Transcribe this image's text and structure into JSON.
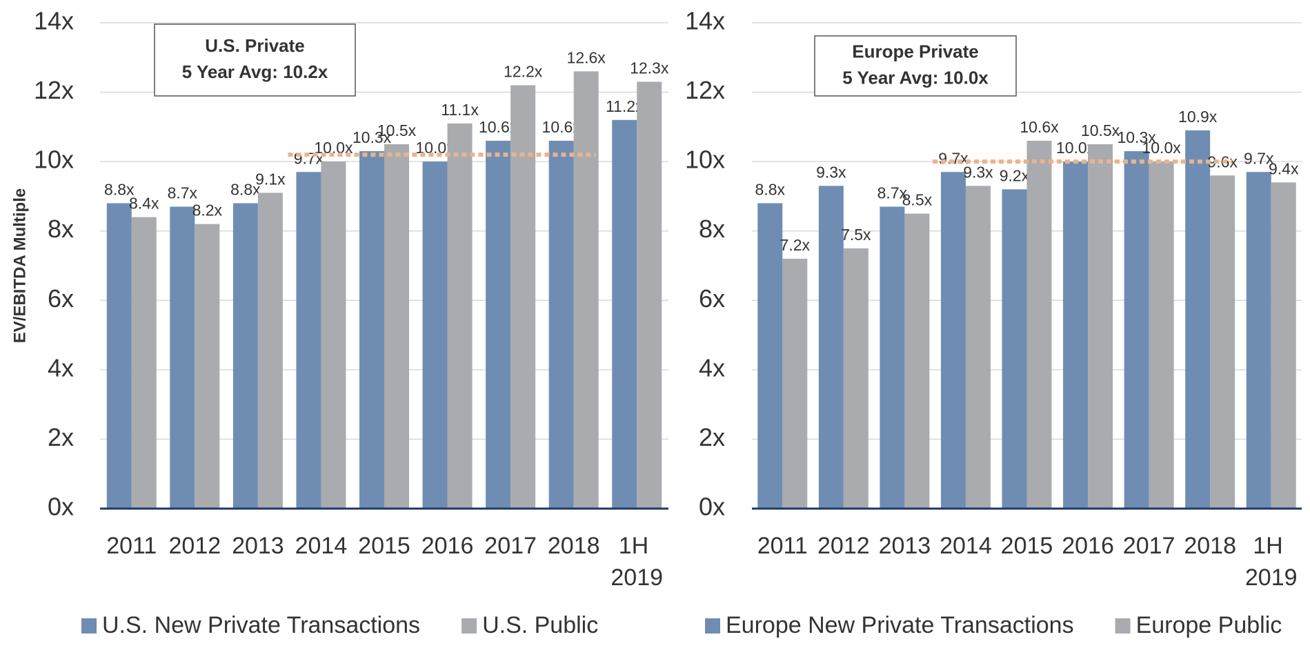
{
  "chart_data": [
    {
      "type": "bar",
      "ylabel": "EV/EBITDA Multiple",
      "annotation": [
        "U.S. Private",
        "5 Year Avg: 10.2x"
      ],
      "average": 10.2,
      "average_from": "2014",
      "average_to": "2018",
      "average_color": "#e9b48e",
      "categories": [
        "2011",
        "2012",
        "2013",
        "2014",
        "2015",
        "2016",
        "2017",
        "2018",
        "1H 2019"
      ],
      "series": [
        {
          "name": "U.S. New Private Transactions",
          "color": "#6f8db3",
          "values": [
            8.8,
            8.7,
            8.8,
            9.7,
            10.3,
            10.0,
            10.6,
            10.6,
            11.2
          ],
          "value_labels": [
            "8.8x",
            "8.7x",
            "8.8x",
            "9.7x",
            "10.3x",
            "10.0x",
            "10.6x",
            "10.6x",
            "11.2x"
          ]
        },
        {
          "name": "U.S. Public",
          "color": "#a9abae",
          "values": [
            8.4,
            8.2,
            9.1,
            10.0,
            10.5,
            11.1,
            12.2,
            12.6,
            12.3
          ],
          "value_labels": [
            "8.4x",
            "8.2x",
            "9.1x",
            "10.0x",
            "10.5x",
            "11.1x",
            "12.2x",
            "12.6x",
            "12.3x"
          ]
        }
      ],
      "ylim": [
        0,
        14
      ],
      "yticks": [
        {
          "value": 0,
          "label": "0x"
        },
        {
          "value": 2,
          "label": "2x"
        },
        {
          "value": 4,
          "label": "4x"
        },
        {
          "value": 6,
          "label": "6x"
        },
        {
          "value": 8,
          "label": "8x"
        },
        {
          "value": 10,
          "label": "10x"
        },
        {
          "value": 12,
          "label": "12x"
        },
        {
          "value": 14,
          "label": "14x"
        }
      ],
      "grid": true,
      "legend": "bottom"
    },
    {
      "type": "bar",
      "annotation": [
        "Europe Private",
        "5 Year Avg: 10.0x"
      ],
      "average": 10.0,
      "average_from": "2014",
      "average_to": "2018",
      "average_color": "#e9b48e",
      "categories": [
        "2011",
        "2012",
        "2013",
        "2014",
        "2015",
        "2016",
        "2017",
        "2018",
        "1H 2019"
      ],
      "series": [
        {
          "name": "Europe New Private Transactions",
          "color": "#6f8db3",
          "values": [
            8.8,
            9.3,
            8.7,
            9.7,
            9.2,
            10.0,
            10.3,
            10.9,
            9.7
          ],
          "value_labels": [
            "8.8x",
            "9.3x",
            "8.7x",
            "9.7x",
            "9.2x",
            "10.0x",
            "10.3x",
            "10.9x",
            "9.7x"
          ]
        },
        {
          "name": "Europe Public",
          "color": "#a9abae",
          "values": [
            7.2,
            7.5,
            8.5,
            9.3,
            10.6,
            10.5,
            10.0,
            9.6,
            9.4
          ],
          "value_labels": [
            "7.2x",
            "7.5x",
            "8.5x",
            "9.3x",
            "10.6x",
            "10.5x",
            "10.0x",
            "9.6x",
            "9.4x"
          ]
        }
      ],
      "ylim": [
        0,
        14
      ],
      "yticks": [
        {
          "value": 0,
          "label": "0x"
        },
        {
          "value": 2,
          "label": "2x"
        },
        {
          "value": 4,
          "label": "4x"
        },
        {
          "value": 6,
          "label": "6x"
        },
        {
          "value": 8,
          "label": "8x"
        },
        {
          "value": 10,
          "label": "10x"
        },
        {
          "value": 12,
          "label": "12x"
        },
        {
          "value": 14,
          "label": "14x"
        }
      ],
      "grid": true,
      "legend": "bottom"
    }
  ]
}
